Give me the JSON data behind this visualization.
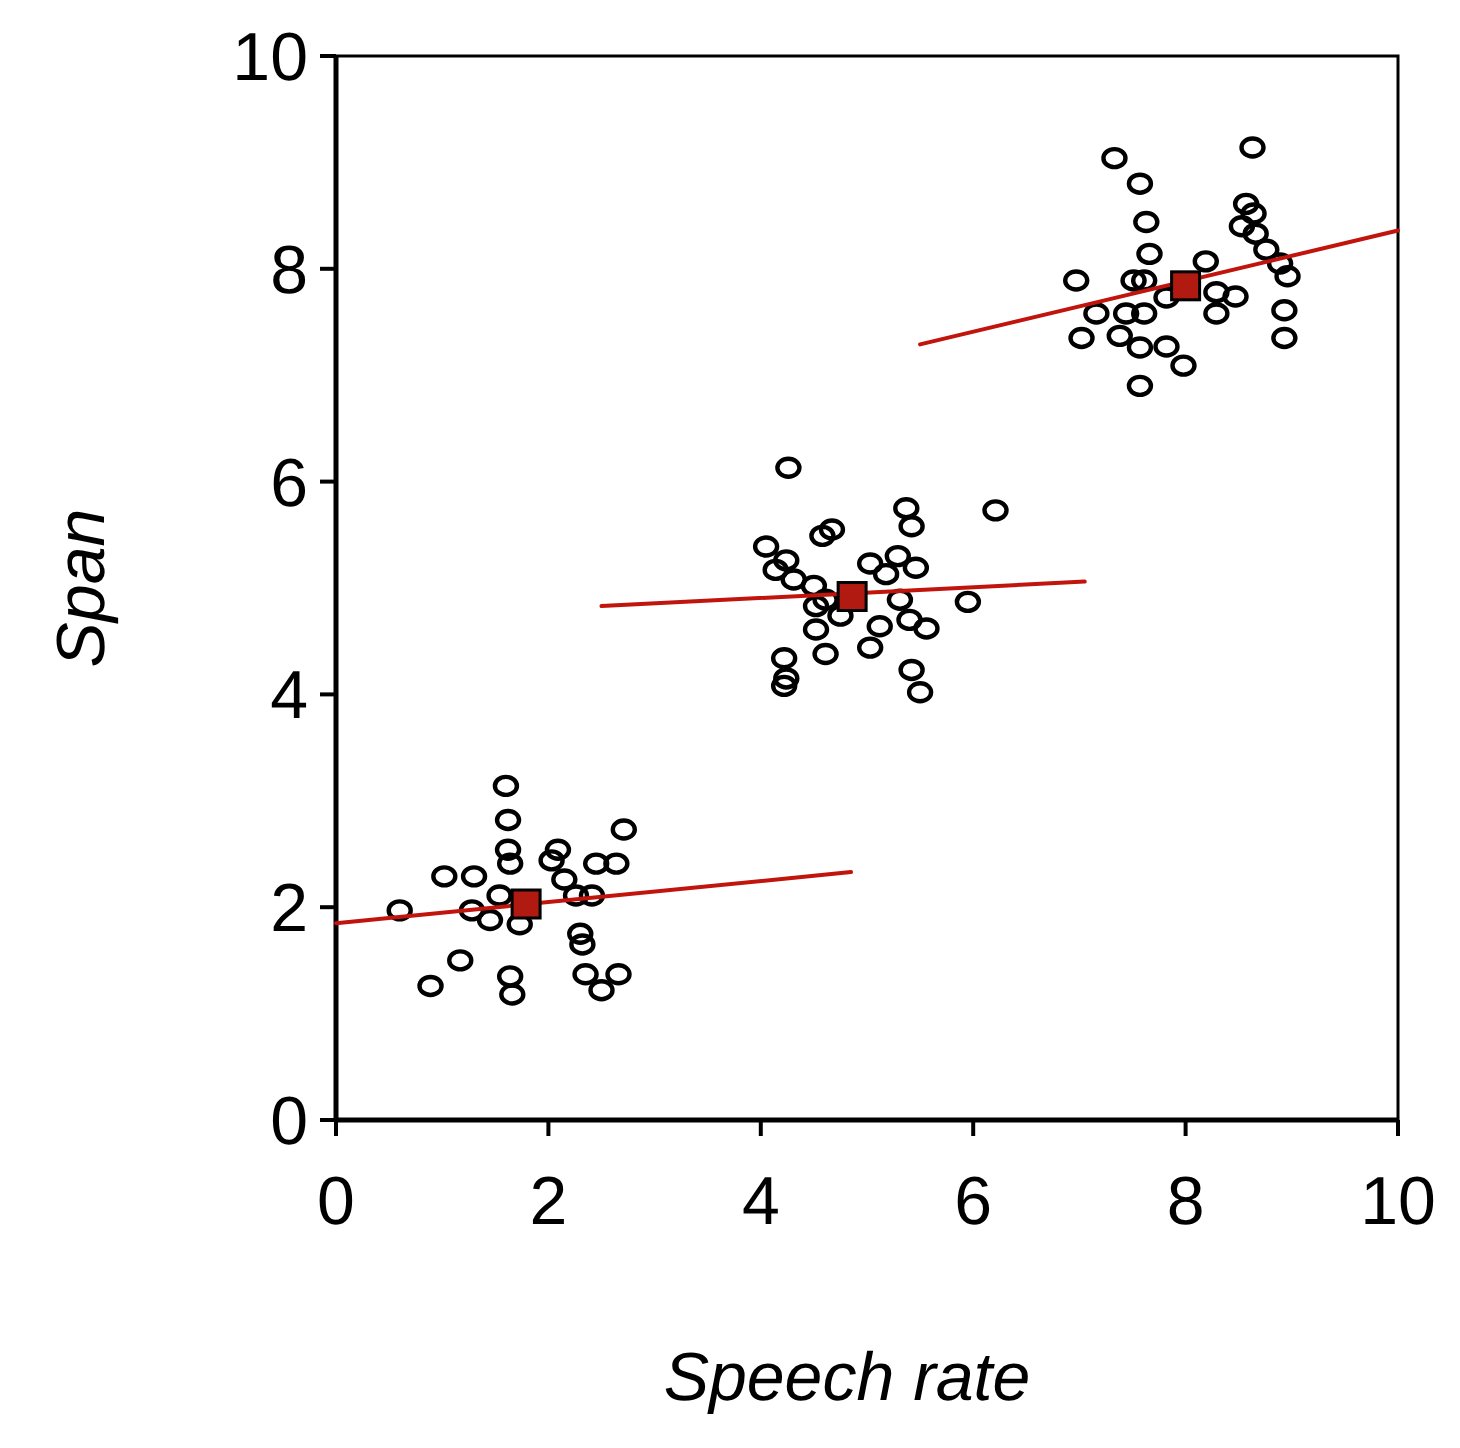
{
  "chart_data": {
    "type": "scatter",
    "xlabel": "Speech rate",
    "ylabel": "Span",
    "xlim": [
      0,
      10
    ],
    "ylim": [
      0,
      10
    ],
    "xticks": [
      0,
      2,
      4,
      6,
      8,
      10
    ],
    "yticks": [
      0,
      2,
      4,
      6,
      8,
      10
    ],
    "grid": false,
    "series": [
      {
        "marker": "circle",
        "color": "#000000",
        "x": [
          0.6,
          0.89,
          1.17,
          1.02,
          1.3,
          1.45,
          1.54,
          1.6,
          1.62,
          1.62,
          1.64,
          1.64,
          1.66,
          1.73,
          2.03,
          2.09,
          2.15,
          2.26,
          2.3,
          2.32,
          2.35,
          2.41,
          2.45,
          2.5,
          2.66,
          2.71,
          2.64,
          1.28
        ],
        "values": [
          1.97,
          1.26,
          1.5,
          2.29,
          2.29,
          1.88,
          2.11,
          3.14,
          2.82,
          2.54,
          2.41,
          1.35,
          1.18,
          1.84,
          2.44,
          2.54,
          2.26,
          2.11,
          1.75,
          1.65,
          1.37,
          2.11,
          2.41,
          1.22,
          1.37,
          2.73,
          2.41,
          1.97
        ]
      },
      {
        "marker": "circle",
        "color": "#000000",
        "x": [
          4.26,
          5.37,
          5.42,
          6.21,
          4.67,
          4.58,
          4.05,
          4.24,
          4.14,
          4.31,
          5.03,
          5.18,
          5.29,
          5.46,
          4.5,
          4.61,
          4.52,
          4.75,
          4.52,
          5.31,
          5.95,
          5.12,
          5.4,
          5.56,
          5.03,
          4.61,
          4.22,
          4.24,
          4.22,
          5.42,
          5.5
        ],
        "values": [
          6.13,
          5.75,
          5.58,
          5.73,
          5.55,
          5.49,
          5.39,
          5.26,
          5.17,
          5.08,
          5.23,
          5.13,
          5.3,
          5.19,
          5.02,
          4.89,
          4.83,
          4.74,
          4.61,
          4.89,
          4.87,
          4.64,
          4.7,
          4.62,
          4.44,
          4.38,
          4.34,
          4.15,
          4.08,
          4.23,
          4.02
        ]
      },
      {
        "marker": "circle",
        "color": "#000000",
        "x": [
          7.33,
          8.63,
          7.57,
          7.63,
          8.57,
          8.64,
          8.53,
          8.66,
          7.66,
          8.76,
          8.89,
          8.19,
          6.97,
          7.51,
          7.61,
          8.96,
          7.16,
          7.44,
          7.61,
          7.82,
          8.29,
          8.47,
          8.29,
          8.93,
          7.02,
          7.38,
          7.57,
          7.82,
          7.98,
          8.93,
          7.57
        ],
        "values": [
          9.04,
          9.14,
          8.8,
          8.44,
          8.61,
          8.52,
          8.4,
          8.33,
          8.14,
          8.18,
          8.05,
          8.07,
          7.89,
          7.89,
          7.89,
          7.93,
          7.58,
          7.58,
          7.58,
          7.73,
          7.78,
          7.74,
          7.58,
          7.61,
          7.35,
          7.37,
          7.26,
          7.27,
          7.09,
          7.35,
          6.9
        ]
      },
      {
        "type": "line",
        "marker": "none",
        "color": "#c0140c",
        "x": [
          0,
          4.85
        ],
        "values": [
          1.85,
          2.33
        ]
      },
      {
        "type": "line",
        "marker": "none",
        "color": "#c0140c",
        "x": [
          2.5,
          7.05
        ],
        "values": [
          4.83,
          5.06
        ]
      },
      {
        "type": "line",
        "marker": "none",
        "color": "#c0140c",
        "x": [
          5.5,
          10
        ],
        "values": [
          7.29,
          8.36
        ]
      },
      {
        "marker": "square",
        "color": "#b01a10",
        "x": [
          1.79,
          4.86,
          8.0
        ],
        "values": [
          2.03,
          4.92,
          7.84
        ]
      }
    ]
  }
}
